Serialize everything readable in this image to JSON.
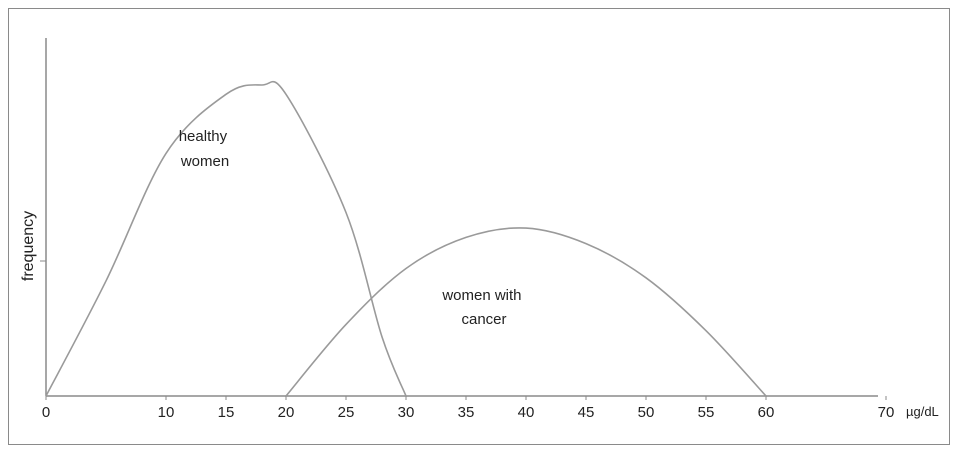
{
  "chart_data": {
    "type": "line",
    "title": "",
    "xlabel": "µg/dL",
    "ylabel": "frequency",
    "xlim": [
      0,
      70
    ],
    "ylim": [
      0,
      1
    ],
    "x_ticks": [
      "0",
      "10",
      "15",
      "20",
      "25",
      "30",
      "35",
      "40",
      "45",
      "50",
      "55",
      "60",
      "70"
    ],
    "grid": false,
    "legend": "none",
    "series": [
      {
        "name": "healthy women",
        "label_lines": [
          "healthy",
          "women"
        ],
        "color": "#9a9a9a",
        "points": [
          [
            0,
            0
          ],
          [
            5,
            0.37
          ],
          [
            10,
            0.78
          ],
          [
            15,
            0.97
          ],
          [
            18,
            1.0
          ],
          [
            20,
            0.97
          ],
          [
            25,
            0.59
          ],
          [
            28,
            0.19
          ],
          [
            30,
            0
          ]
        ]
      },
      {
        "name": "women with cancer",
        "label_lines": [
          "women with",
          "cancer"
        ],
        "color": "#9a9a9a",
        "points": [
          [
            20,
            0
          ],
          [
            25,
            0.23
          ],
          [
            30,
            0.41
          ],
          [
            35,
            0.51
          ],
          [
            40,
            0.54
          ],
          [
            45,
            0.49
          ],
          [
            50,
            0.38
          ],
          [
            55,
            0.21
          ],
          [
            60,
            0
          ]
        ]
      }
    ]
  }
}
